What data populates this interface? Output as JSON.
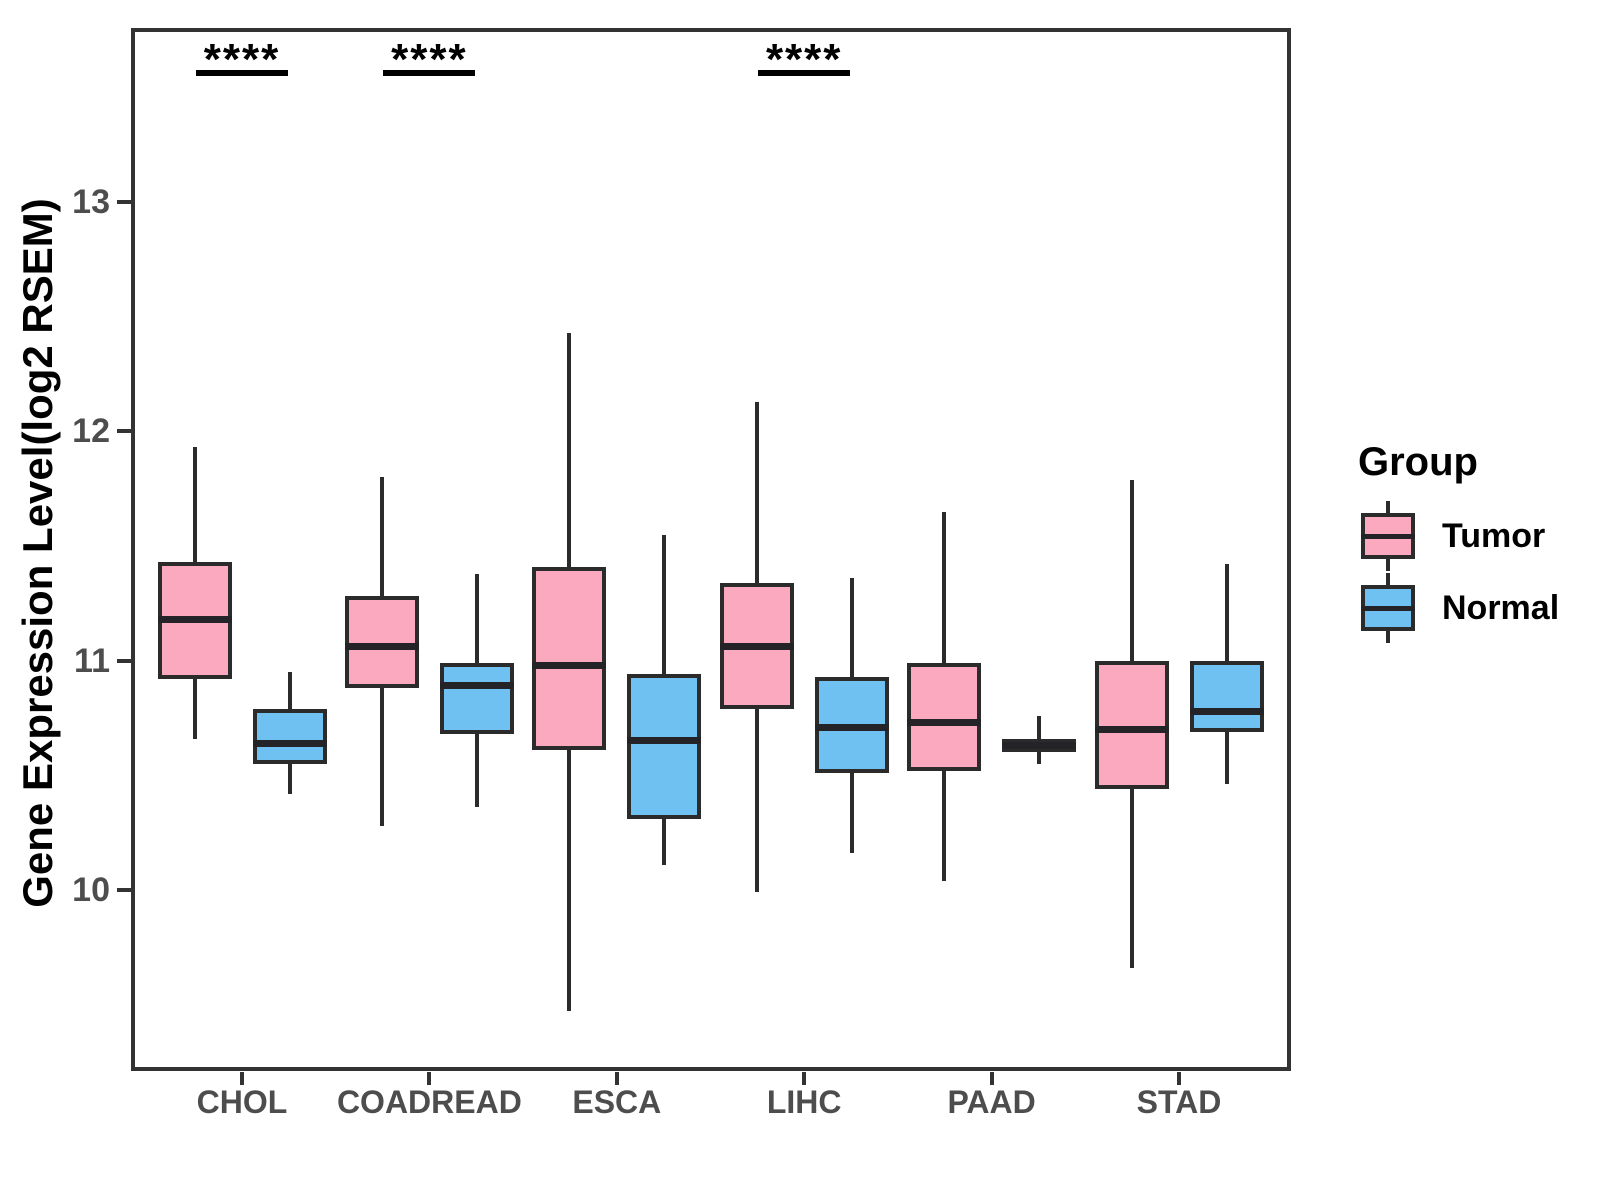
{
  "chart_data": {
    "type": "boxplot",
    "title": "",
    "ylabel": "Gene Expression Level(log2 RSEM)",
    "xlabel": "",
    "ylim": [
      9.21,
      13.76
    ],
    "yticks": [
      10,
      11,
      12,
      13
    ],
    "categories": [
      "CHOL",
      "COADREAD",
      "ESCA",
      "LIHC",
      "PAAD",
      "STAD"
    ],
    "legend": {
      "title": "Group",
      "position": "right",
      "entries": [
        {
          "label": "Tumor",
          "color": "#FBA9BE"
        },
        {
          "label": "Normal",
          "color": "#6FC1F2"
        }
      ]
    },
    "significance": [
      {
        "category": "CHOL",
        "label": "****"
      },
      {
        "category": "COADREAD",
        "label": "****"
      },
      {
        "category": "LIHC",
        "label": "****"
      }
    ],
    "series": [
      {
        "name": "Tumor",
        "color": "#FBA9BE",
        "boxes": [
          {
            "category": "CHOL",
            "whisker_low": 10.66,
            "q1": 10.92,
            "median": 11.18,
            "q3": 11.43,
            "whisker_high": 11.93
          },
          {
            "category": "COADREAD",
            "whisker_low": 10.28,
            "q1": 10.88,
            "median": 11.06,
            "q3": 11.28,
            "whisker_high": 11.8
          },
          {
            "category": "ESCA",
            "whisker_low": 9.47,
            "q1": 10.61,
            "median": 10.98,
            "q3": 11.41,
            "whisker_high": 12.43
          },
          {
            "category": "LIHC",
            "whisker_low": 9.99,
            "q1": 10.79,
            "median": 11.06,
            "q3": 11.34,
            "whisker_high": 12.13
          },
          {
            "category": "PAAD",
            "whisker_low": 10.04,
            "q1": 10.52,
            "median": 10.73,
            "q3": 10.99,
            "whisker_high": 11.65
          },
          {
            "category": "STAD",
            "whisker_low": 9.66,
            "q1": 10.44,
            "median": 10.7,
            "q3": 11.0,
            "whisker_high": 11.79
          }
        ]
      },
      {
        "name": "Normal",
        "color": "#6FC1F2",
        "boxes": [
          {
            "category": "CHOL",
            "whisker_low": 10.42,
            "q1": 10.55,
            "median": 10.64,
            "q3": 10.79,
            "whisker_high": 10.95
          },
          {
            "category": "COADREAD",
            "whisker_low": 10.36,
            "q1": 10.68,
            "median": 10.89,
            "q3": 10.99,
            "whisker_high": 11.38
          },
          {
            "category": "ESCA",
            "whisker_low": 10.11,
            "q1": 10.31,
            "median": 10.65,
            "q3": 10.94,
            "whisker_high": 11.55
          },
          {
            "category": "LIHC",
            "whisker_low": 10.16,
            "q1": 10.51,
            "median": 10.71,
            "q3": 10.93,
            "whisker_high": 11.36
          },
          {
            "category": "PAAD",
            "whisker_low": 10.55,
            "q1": 10.6,
            "median": 10.63,
            "q3": 10.66,
            "whisker_high": 10.76
          },
          {
            "category": "STAD",
            "whisker_low": 10.46,
            "q1": 10.69,
            "median": 10.78,
            "q3": 11.0,
            "whisker_high": 11.42
          }
        ]
      }
    ],
    "styles": {
      "box_border_color": "#2b2b2b",
      "median_color": "#242428",
      "panel_border_color": "#333333",
      "tick_label_color": "#4d4d4d",
      "significance_color": "#000000"
    }
  }
}
